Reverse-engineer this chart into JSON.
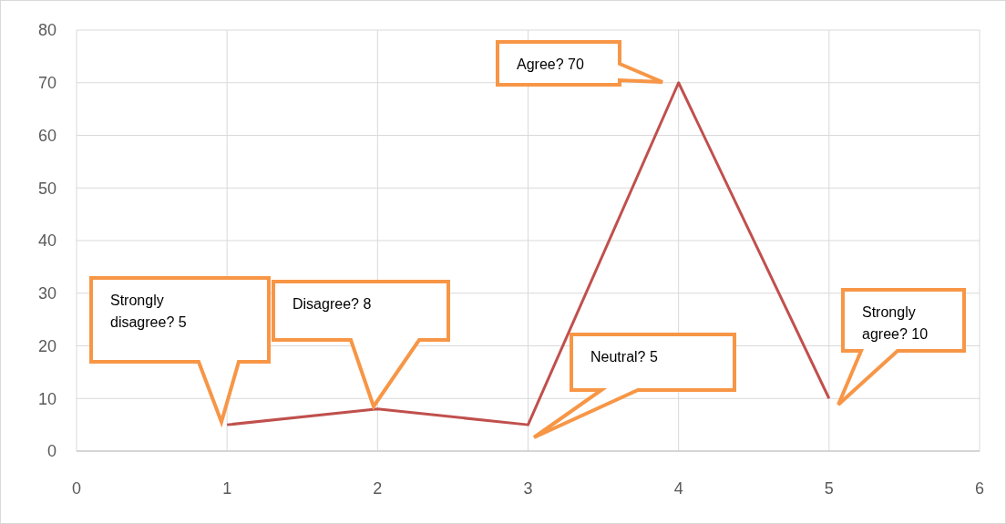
{
  "chart_data": {
    "type": "line",
    "x": [
      1,
      2,
      3,
      4,
      5
    ],
    "series": [
      {
        "color": "#c0504d",
        "values": [
          5,
          8,
          5,
          70,
          10
        ]
      }
    ],
    "xlim": [
      0,
      6
    ],
    "xticks": [
      0,
      1,
      2,
      3,
      4,
      5,
      6
    ],
    "ylim": [
      0,
      80
    ],
    "yticks": [
      0,
      10,
      20,
      30,
      40,
      50,
      60,
      70,
      80
    ],
    "grid": true,
    "marker": "none",
    "line_style": "solid",
    "annotations": [
      "Strongly disagree? 5",
      "Disagree? 8",
      "Neutral? 5",
      "Agree? 70",
      "Strongly agree? 10"
    ]
  }
}
